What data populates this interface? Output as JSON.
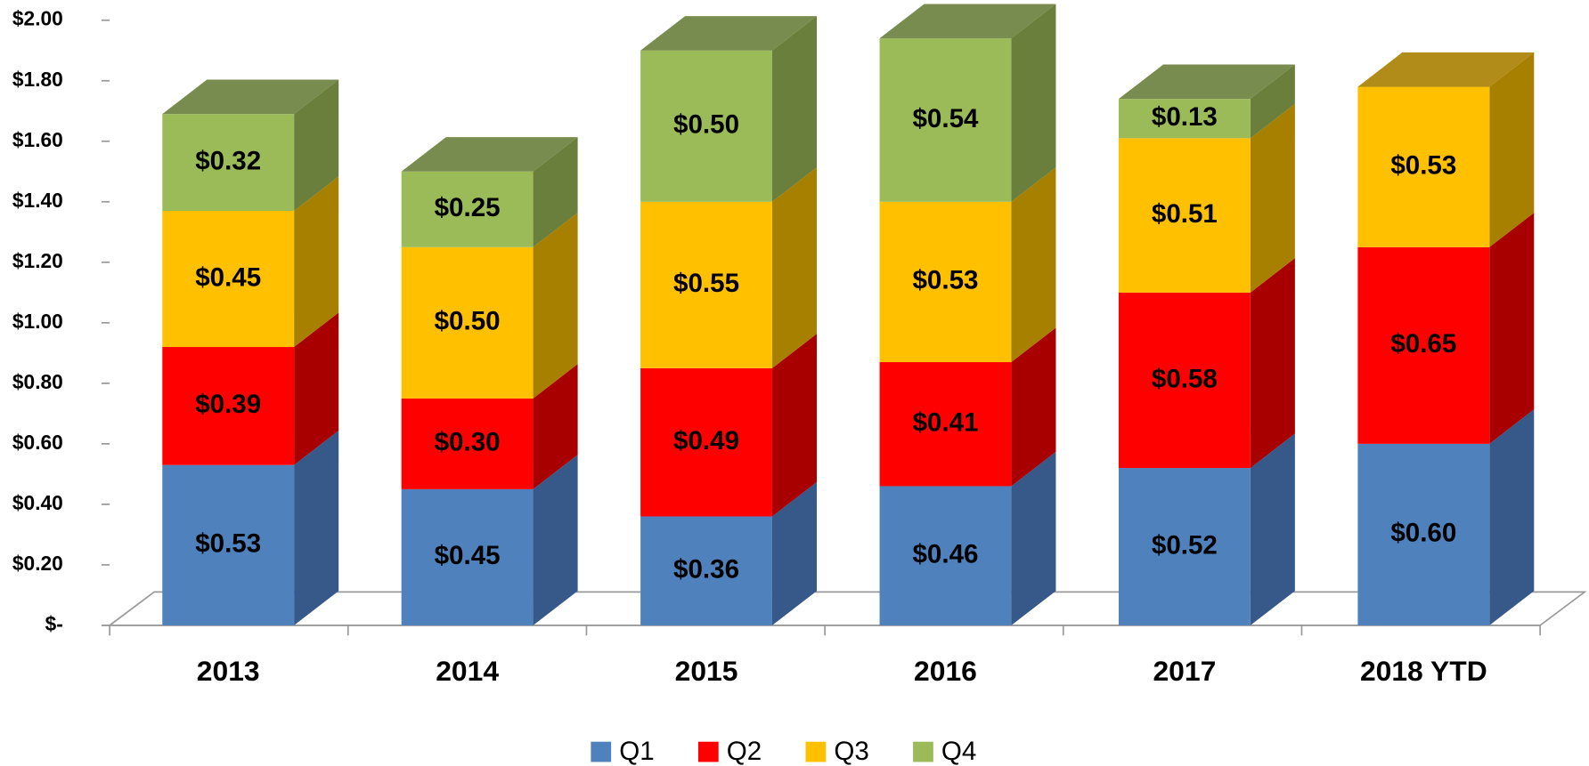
{
  "chart_data": {
    "type": "bar3d_stacked",
    "categories": [
      "2013",
      "2014",
      "2015",
      "2016",
      "2017",
      "2018 YTD"
    ],
    "series": [
      {
        "name": "Q1",
        "color": "#4f81bd",
        "side_color": "#36598a",
        "values": [
          0.53,
          0.45,
          0.36,
          0.46,
          0.52,
          0.6
        ],
        "value_labels": [
          "$0.53",
          "$0.45",
          "$0.36",
          "$0.46",
          "$0.52",
          "$0.60"
        ]
      },
      {
        "name": "Q2",
        "color": "#ff0000",
        "side_color": "#a80000",
        "values": [
          0.39,
          0.3,
          0.49,
          0.41,
          0.58,
          0.65
        ],
        "value_labels": [
          "$0.39",
          "$0.30",
          "$0.49",
          "$0.41",
          "$0.58",
          "$0.65"
        ]
      },
      {
        "name": "Q3",
        "color": "#ffc000",
        "side_color": "#a88000",
        "values": [
          0.45,
          0.5,
          0.55,
          0.53,
          0.51,
          0.53
        ],
        "value_labels": [
          "$0.45",
          "$0.50",
          "$0.55",
          "$0.53",
          "$0.51",
          "$0.53"
        ]
      },
      {
        "name": "Q4",
        "color": "#9bbb59",
        "side_color": "#6a7f3c",
        "values": [
          0.32,
          0.25,
          0.5,
          0.54,
          0.13,
          null
        ],
        "value_labels": [
          "$0.32",
          "$0.25",
          "$0.50",
          "$0.54",
          "$0.13",
          null
        ]
      }
    ],
    "ylim": [
      0,
      2
    ],
    "yticks": [
      {
        "value": 0,
        "label": "$-"
      },
      {
        "value": 0.2,
        "label": "$0.20"
      },
      {
        "value": 0.4,
        "label": "$0.40"
      },
      {
        "value": 0.6,
        "label": "$0.60"
      },
      {
        "value": 0.8,
        "label": "$0.80"
      },
      {
        "value": 1.0,
        "label": "$1.00"
      },
      {
        "value": 1.2,
        "label": "$1.20"
      },
      {
        "value": 1.4,
        "label": "$1.40"
      },
      {
        "value": 1.6,
        "label": "$1.60"
      },
      {
        "value": 1.8,
        "label": "$1.80"
      },
      {
        "value": 2.0,
        "label": "$2.00"
      }
    ],
    "legend": "bottom"
  }
}
